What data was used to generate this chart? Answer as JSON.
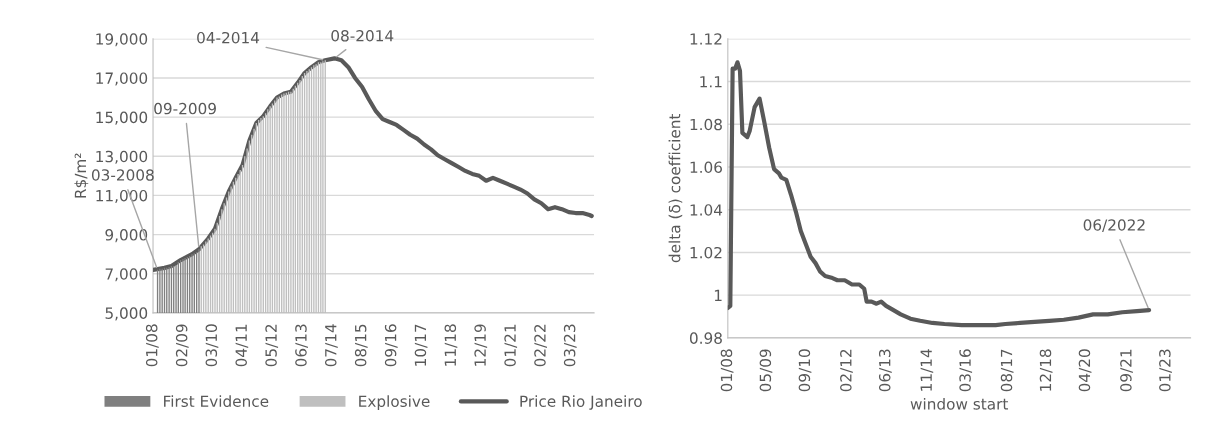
{
  "chart_data": [
    {
      "type": "line",
      "ylabel": "R$/m²",
      "xlim": [
        "2008-01",
        "2024-01"
      ],
      "ylim": [
        5000,
        19000
      ],
      "yticks": [
        {
          "value": 5000,
          "label": "5,000"
        },
        {
          "value": 7000,
          "label": "7,000"
        },
        {
          "value": 9000,
          "label": "9,000"
        },
        {
          "value": 11000,
          "label": "11,000"
        },
        {
          "value": 13000,
          "label": "13,000"
        },
        {
          "value": 15000,
          "label": "15,000"
        },
        {
          "value": 17000,
          "label": "17,000"
        },
        {
          "value": 19000,
          "label": "19,000"
        }
      ],
      "xticks": [
        {
          "value": "2008-01",
          "label": "01/08"
        },
        {
          "value": "2009-02",
          "label": "02/09"
        },
        {
          "value": "2010-03",
          "label": "03/10"
        },
        {
          "value": "2011-04",
          "label": "04/11"
        },
        {
          "value": "2012-05",
          "label": "05/12"
        },
        {
          "value": "2013-06",
          "label": "06/13"
        },
        {
          "value": "2014-07",
          "label": "07/14"
        },
        {
          "value": "2015-08",
          "label": "08/15"
        },
        {
          "value": "2016-09",
          "label": "09/16"
        },
        {
          "value": "2017-10",
          "label": "10/17"
        },
        {
          "value": "2018-11",
          "label": "11/18"
        },
        {
          "value": "2019-12",
          "label": "12/19"
        },
        {
          "value": "2021-01",
          "label": "01/21"
        },
        {
          "value": "2022-02",
          "label": "02/22"
        },
        {
          "value": "2023-03",
          "label": "03/23"
        }
      ],
      "grid": "y",
      "legend": "bottom",
      "series": [
        {
          "name": "First Evidence",
          "type": "bar",
          "color": "#7f7f7f",
          "x": [
            "2008-03",
            "2008-04",
            "2008-05",
            "2008-06",
            "2008-07",
            "2008-08",
            "2008-09",
            "2008-10",
            "2008-11",
            "2008-12",
            "2009-01",
            "2009-02",
            "2009-03",
            "2009-04",
            "2009-05",
            "2009-06",
            "2009-07",
            "2009-08",
            "2009-09"
          ],
          "values": [
            7200,
            7250,
            7250,
            7300,
            7300,
            7350,
            7400,
            7400,
            7450,
            7600,
            7700,
            7750,
            7800,
            7850,
            7900,
            8000,
            8050,
            8100,
            8250
          ]
        },
        {
          "name": "Explosive",
          "type": "bar",
          "color": "#bfbfbf",
          "x": [
            "2009-10",
            "2009-11",
            "2009-12",
            "2010-01",
            "2010-02",
            "2010-03",
            "2010-04",
            "2010-05",
            "2010-06",
            "2010-07",
            "2010-08",
            "2010-09",
            "2010-10",
            "2010-11",
            "2010-12",
            "2011-01",
            "2011-02",
            "2011-03",
            "2011-04",
            "2011-05",
            "2011-06",
            "2011-07",
            "2011-08",
            "2011-09",
            "2011-10",
            "2011-11",
            "2011-12",
            "2012-01",
            "2012-02",
            "2012-03",
            "2012-04",
            "2012-05",
            "2012-06",
            "2012-07",
            "2012-08",
            "2012-09",
            "2012-10",
            "2012-11",
            "2012-12",
            "2013-01",
            "2013-02",
            "2013-03",
            "2013-04",
            "2013-05",
            "2013-06",
            "2013-07",
            "2013-08",
            "2013-09",
            "2013-10",
            "2013-11",
            "2013-12",
            "2014-01",
            "2014-02",
            "2014-03",
            "2014-04"
          ],
          "values": [
            8400,
            8500,
            8650,
            8800,
            8950,
            9100,
            9300,
            9600,
            9950,
            10300,
            10600,
            10900,
            11200,
            11450,
            11700,
            11900,
            12100,
            12300,
            12550,
            13000,
            13400,
            13800,
            14100,
            14400,
            14700,
            14850,
            14950,
            15050,
            15200,
            15400,
            15550,
            15700,
            15850,
            16000,
            16050,
            16150,
            16200,
            16250,
            16300,
            16300,
            16450,
            16600,
            16750,
            16900,
            17100,
            17250,
            17350,
            17450,
            17550,
            17650,
            17700,
            17800,
            17800,
            17850,
            17900
          ]
        },
        {
          "name": "Price Rio Janeiro",
          "type": "line",
          "color": "#595959",
          "x": [
            "2008-01",
            "2008-06",
            "2008-09",
            "2009-01",
            "2009-06",
            "2009-09",
            "2010-01",
            "2010-04",
            "2010-07",
            "2010-10",
            "2011-01",
            "2011-04",
            "2011-07",
            "2011-10",
            "2012-01",
            "2012-04",
            "2012-07",
            "2012-10",
            "2013-01",
            "2013-04",
            "2013-07",
            "2013-10",
            "2014-01",
            "2014-04",
            "2014-08",
            "2014-11",
            "2015-02",
            "2015-05",
            "2015-08",
            "2015-11",
            "2016-02",
            "2016-05",
            "2016-08",
            "2016-11",
            "2017-02",
            "2017-05",
            "2017-08",
            "2017-11",
            "2018-02",
            "2018-05",
            "2018-08",
            "2018-11",
            "2019-02",
            "2019-05",
            "2019-08",
            "2019-11",
            "2020-02",
            "2020-05",
            "2020-08",
            "2020-11",
            "2021-02",
            "2021-05",
            "2021-08",
            "2021-11",
            "2022-02",
            "2022-05",
            "2022-08",
            "2022-11",
            "2023-02",
            "2023-05",
            "2023-08",
            "2023-11",
            "2023-12"
          ],
          "values": [
            7200,
            7300,
            7400,
            7700,
            8000,
            8250,
            8800,
            9300,
            10300,
            11200,
            11900,
            12550,
            13800,
            14700,
            15050,
            15550,
            16000,
            16200,
            16300,
            16750,
            17250,
            17550,
            17800,
            17900,
            18000,
            17900,
            17550,
            17000,
            16550,
            15900,
            15300,
            14900,
            14750,
            14600,
            14350,
            14100,
            13900,
            13600,
            13350,
            13050,
            12850,
            12650,
            12450,
            12250,
            12100,
            12000,
            11750,
            11900,
            11750,
            11600,
            11450,
            11300,
            11100,
            10800,
            10600,
            10300,
            10400,
            10300,
            10150,
            10100,
            10100,
            10000,
            9950
          ]
        }
      ],
      "annotations": [
        {
          "text": "03-2008",
          "x": "2008-03",
          "y": 7200
        },
        {
          "text": "09-2009",
          "x": "2009-09",
          "y": 8250
        },
        {
          "text": "04-2014",
          "x": "2014-04",
          "y": 17900
        },
        {
          "text": "08-2014",
          "x": "2014-08",
          "y": 18000
        }
      ]
    },
    {
      "type": "line",
      "xlabel": "window start",
      "ylabel": "delta (δ) coefficient",
      "xlim": [
        "2008-01",
        "2023-11"
      ],
      "ylim": [
        0.98,
        1.12
      ],
      "yticks": [
        0.98,
        1,
        1.02,
        1.04,
        1.06,
        1.08,
        1.1,
        1.12
      ],
      "xticks": [
        {
          "value": "2008-01",
          "label": "01/08"
        },
        {
          "value": "2009-05",
          "label": "05/09"
        },
        {
          "value": "2010-09",
          "label": "09/10"
        },
        {
          "value": "2012-02",
          "label": "02/12"
        },
        {
          "value": "2013-06",
          "label": "06/13"
        },
        {
          "value": "2014-11",
          "label": "11/14"
        },
        {
          "value": "2016-03",
          "label": "03/16"
        },
        {
          "value": "2017-08",
          "label": "08/17"
        },
        {
          "value": "2018-12",
          "label": "12/18"
        },
        {
          "value": "2020-04",
          "label": "04/20"
        },
        {
          "value": "2021-09",
          "label": "09/21"
        },
        {
          "value": "2023-01",
          "label": "01/23"
        }
      ],
      "grid": "y",
      "series": [
        {
          "color": "#595959",
          "x": [
            "2008-01",
            "2008-02",
            "2008-03",
            "2008-04",
            "2008-05",
            "2008-06",
            "2008-07",
            "2008-09",
            "2008-10",
            "2008-12",
            "2009-02",
            "2009-04",
            "2009-06",
            "2009-08",
            "2009-10",
            "2009-11",
            "2010-01",
            "2010-03",
            "2010-05",
            "2010-07",
            "2010-09",
            "2010-11",
            "2011-01",
            "2011-03",
            "2011-05",
            "2011-08",
            "2011-10",
            "2012-01",
            "2012-04",
            "2012-07",
            "2012-09",
            "2012-10",
            "2012-12",
            "2013-02",
            "2013-04",
            "2013-06",
            "2013-09",
            "2013-12",
            "2014-04",
            "2014-08",
            "2015-01",
            "2015-06",
            "2016-01",
            "2016-08",
            "2017-03",
            "2017-07",
            "2018-01",
            "2018-07",
            "2019-01",
            "2019-07",
            "2020-01",
            "2020-07",
            "2021-01",
            "2021-07",
            "2022-01",
            "2022-06"
          ],
          "values": [
            0.994,
            0.995,
            1.106,
            1.106,
            1.109,
            1.105,
            1.076,
            1.074,
            1.077,
            1.088,
            1.092,
            1.081,
            1.069,
            1.059,
            1.057,
            1.055,
            1.054,
            1.047,
            1.039,
            1.03,
            1.024,
            1.018,
            1.015,
            1.011,
            1.009,
            1.008,
            1.007,
            1.007,
            1.005,
            1.005,
            1.003,
            0.997,
            0.997,
            0.996,
            0.997,
            0.995,
            0.993,
            0.991,
            0.989,
            0.988,
            0.987,
            0.9865,
            0.986,
            0.986,
            0.986,
            0.9865,
            0.987,
            0.9875,
            0.988,
            0.9885,
            0.9895,
            0.991,
            0.991,
            0.992,
            0.9925,
            0.993
          ]
        }
      ],
      "annotations": [
        {
          "text": "06/2022",
          "x": "2022-06",
          "y": 0.993
        }
      ]
    }
  ]
}
